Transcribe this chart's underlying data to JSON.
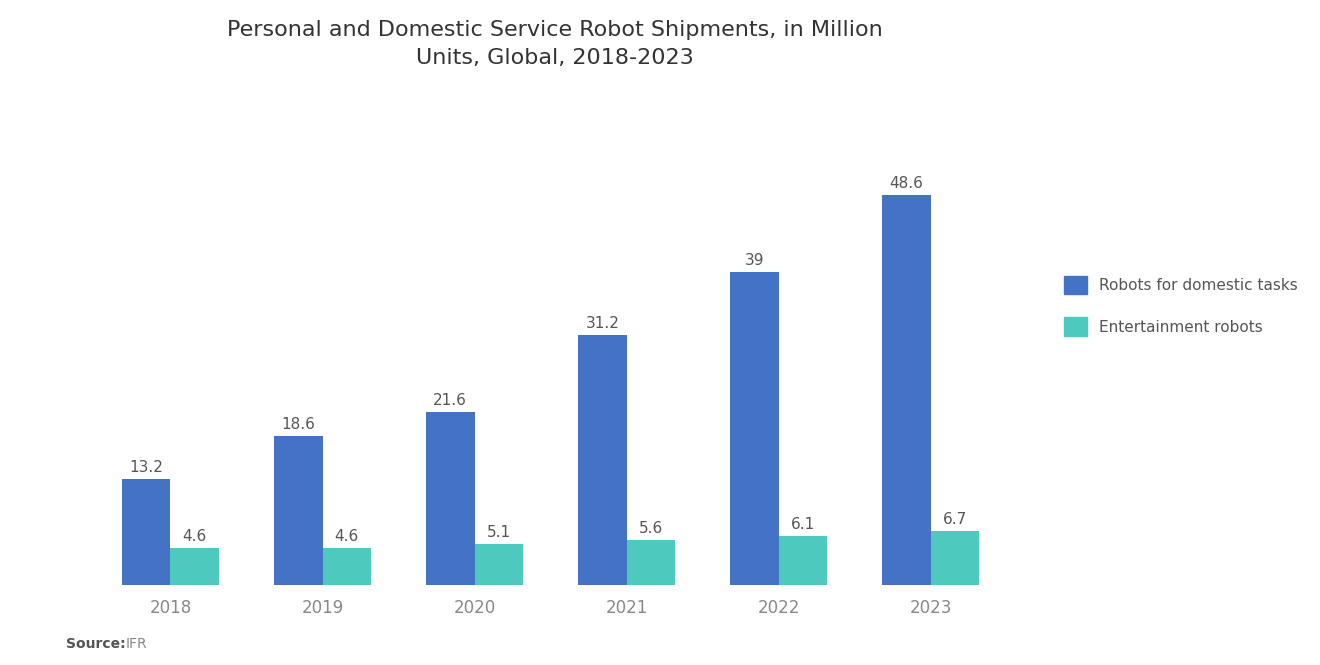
{
  "title": "Personal and Domestic Service Robot Shipments, in Million\nUnits, Global, 2018-2023",
  "years": [
    "2018",
    "2019",
    "2020",
    "2021",
    "2022",
    "2023"
  ],
  "domestic_values": [
    13.2,
    18.6,
    21.6,
    31.2,
    39.0,
    48.6
  ],
  "entertainment_values": [
    4.6,
    4.6,
    5.1,
    5.6,
    6.1,
    6.7
  ],
  "domestic_color": "#4472C4",
  "entertainment_color": "#4DC9BE",
  "background_color": "#FFFFFF",
  "title_fontsize": 16,
  "label_fontsize": 11,
  "tick_fontsize": 12,
  "legend_fontsize": 11,
  "legend_labels": [
    "Robots for domestic tasks",
    "Entertainment robots"
  ],
  "bar_width": 0.32,
  "ylim": [
    0,
    58
  ],
  "label_color": "#555555",
  "tick_color": "#888888"
}
